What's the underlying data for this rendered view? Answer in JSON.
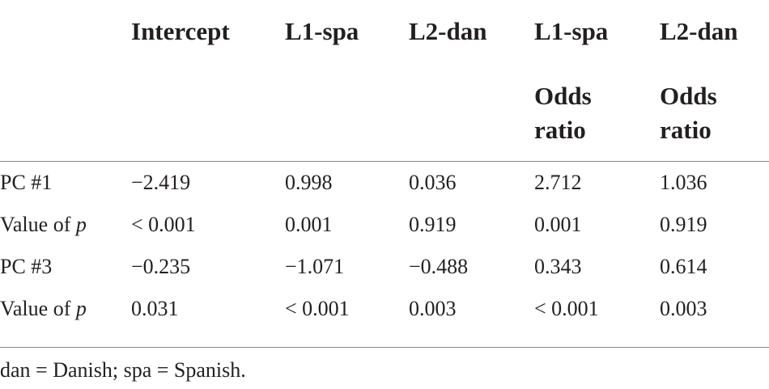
{
  "table": {
    "headers": [
      "Intercept",
      "L1-spa",
      "L2-dan",
      "L1-spa",
      "L2-dan"
    ],
    "subheaders": [
      "",
      "",
      "",
      "Odds ratio",
      "Odds ratio"
    ],
    "subheader_lines": [
      [],
      [],
      [],
      [
        "Odds",
        "ratio"
      ],
      [
        "Odds",
        "ratio"
      ]
    ],
    "rows": [
      {
        "label": "PC #1",
        "label_italic_suffix": "",
        "cells": [
          "−2.419",
          "0.998",
          "0.036",
          "2.712",
          "1.036"
        ]
      },
      {
        "label": "Value of ",
        "label_italic_suffix": "p",
        "cells": [
          "< 0.001",
          "0.001",
          "0.919",
          "0.001",
          "0.919"
        ]
      },
      {
        "label": "PC #3",
        "label_italic_suffix": "",
        "cells": [
          "−0.235",
          "−1.071",
          "−0.488",
          "0.343",
          "0.614"
        ]
      },
      {
        "label": "Value of ",
        "label_italic_suffix": "p",
        "cells": [
          "0.031",
          "< 0.001",
          "0.003",
          "< 0.001",
          "0.003"
        ]
      }
    ]
  },
  "footnote": "dan = Danish; spa = Spanish."
}
